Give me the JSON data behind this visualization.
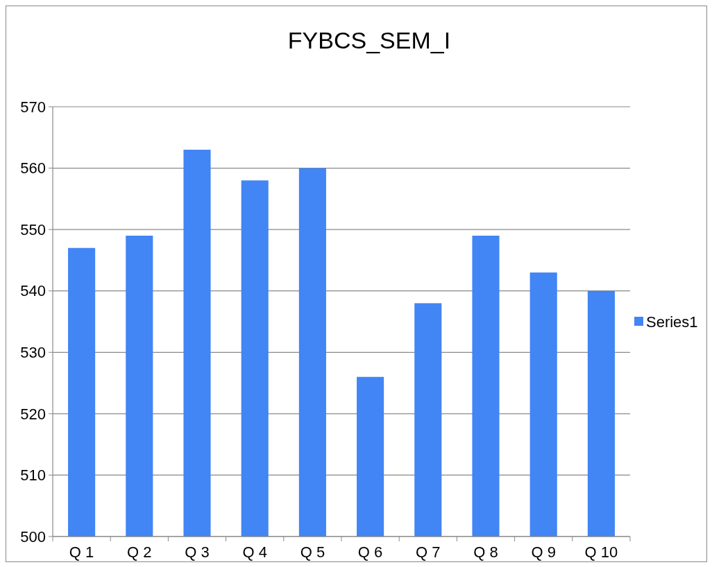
{
  "chart_data": {
    "type": "bar",
    "title": "FYBCS_SEM_I",
    "categories": [
      "Q 1",
      "Q 2",
      "Q 3",
      "Q 4",
      "Q 5",
      "Q 6",
      "Q 7",
      "Q 8",
      "Q 9",
      "Q 10"
    ],
    "series": [
      {
        "name": "Series1",
        "color": "#4285f4",
        "values": [
          547,
          549,
          563,
          558,
          560,
          526,
          538,
          549,
          543,
          540
        ]
      }
    ],
    "ylim": [
      500,
      570
    ],
    "yticks": [
      500,
      510,
      520,
      530,
      540,
      550,
      560,
      570
    ],
    "grid": "y",
    "legend": "right"
  }
}
